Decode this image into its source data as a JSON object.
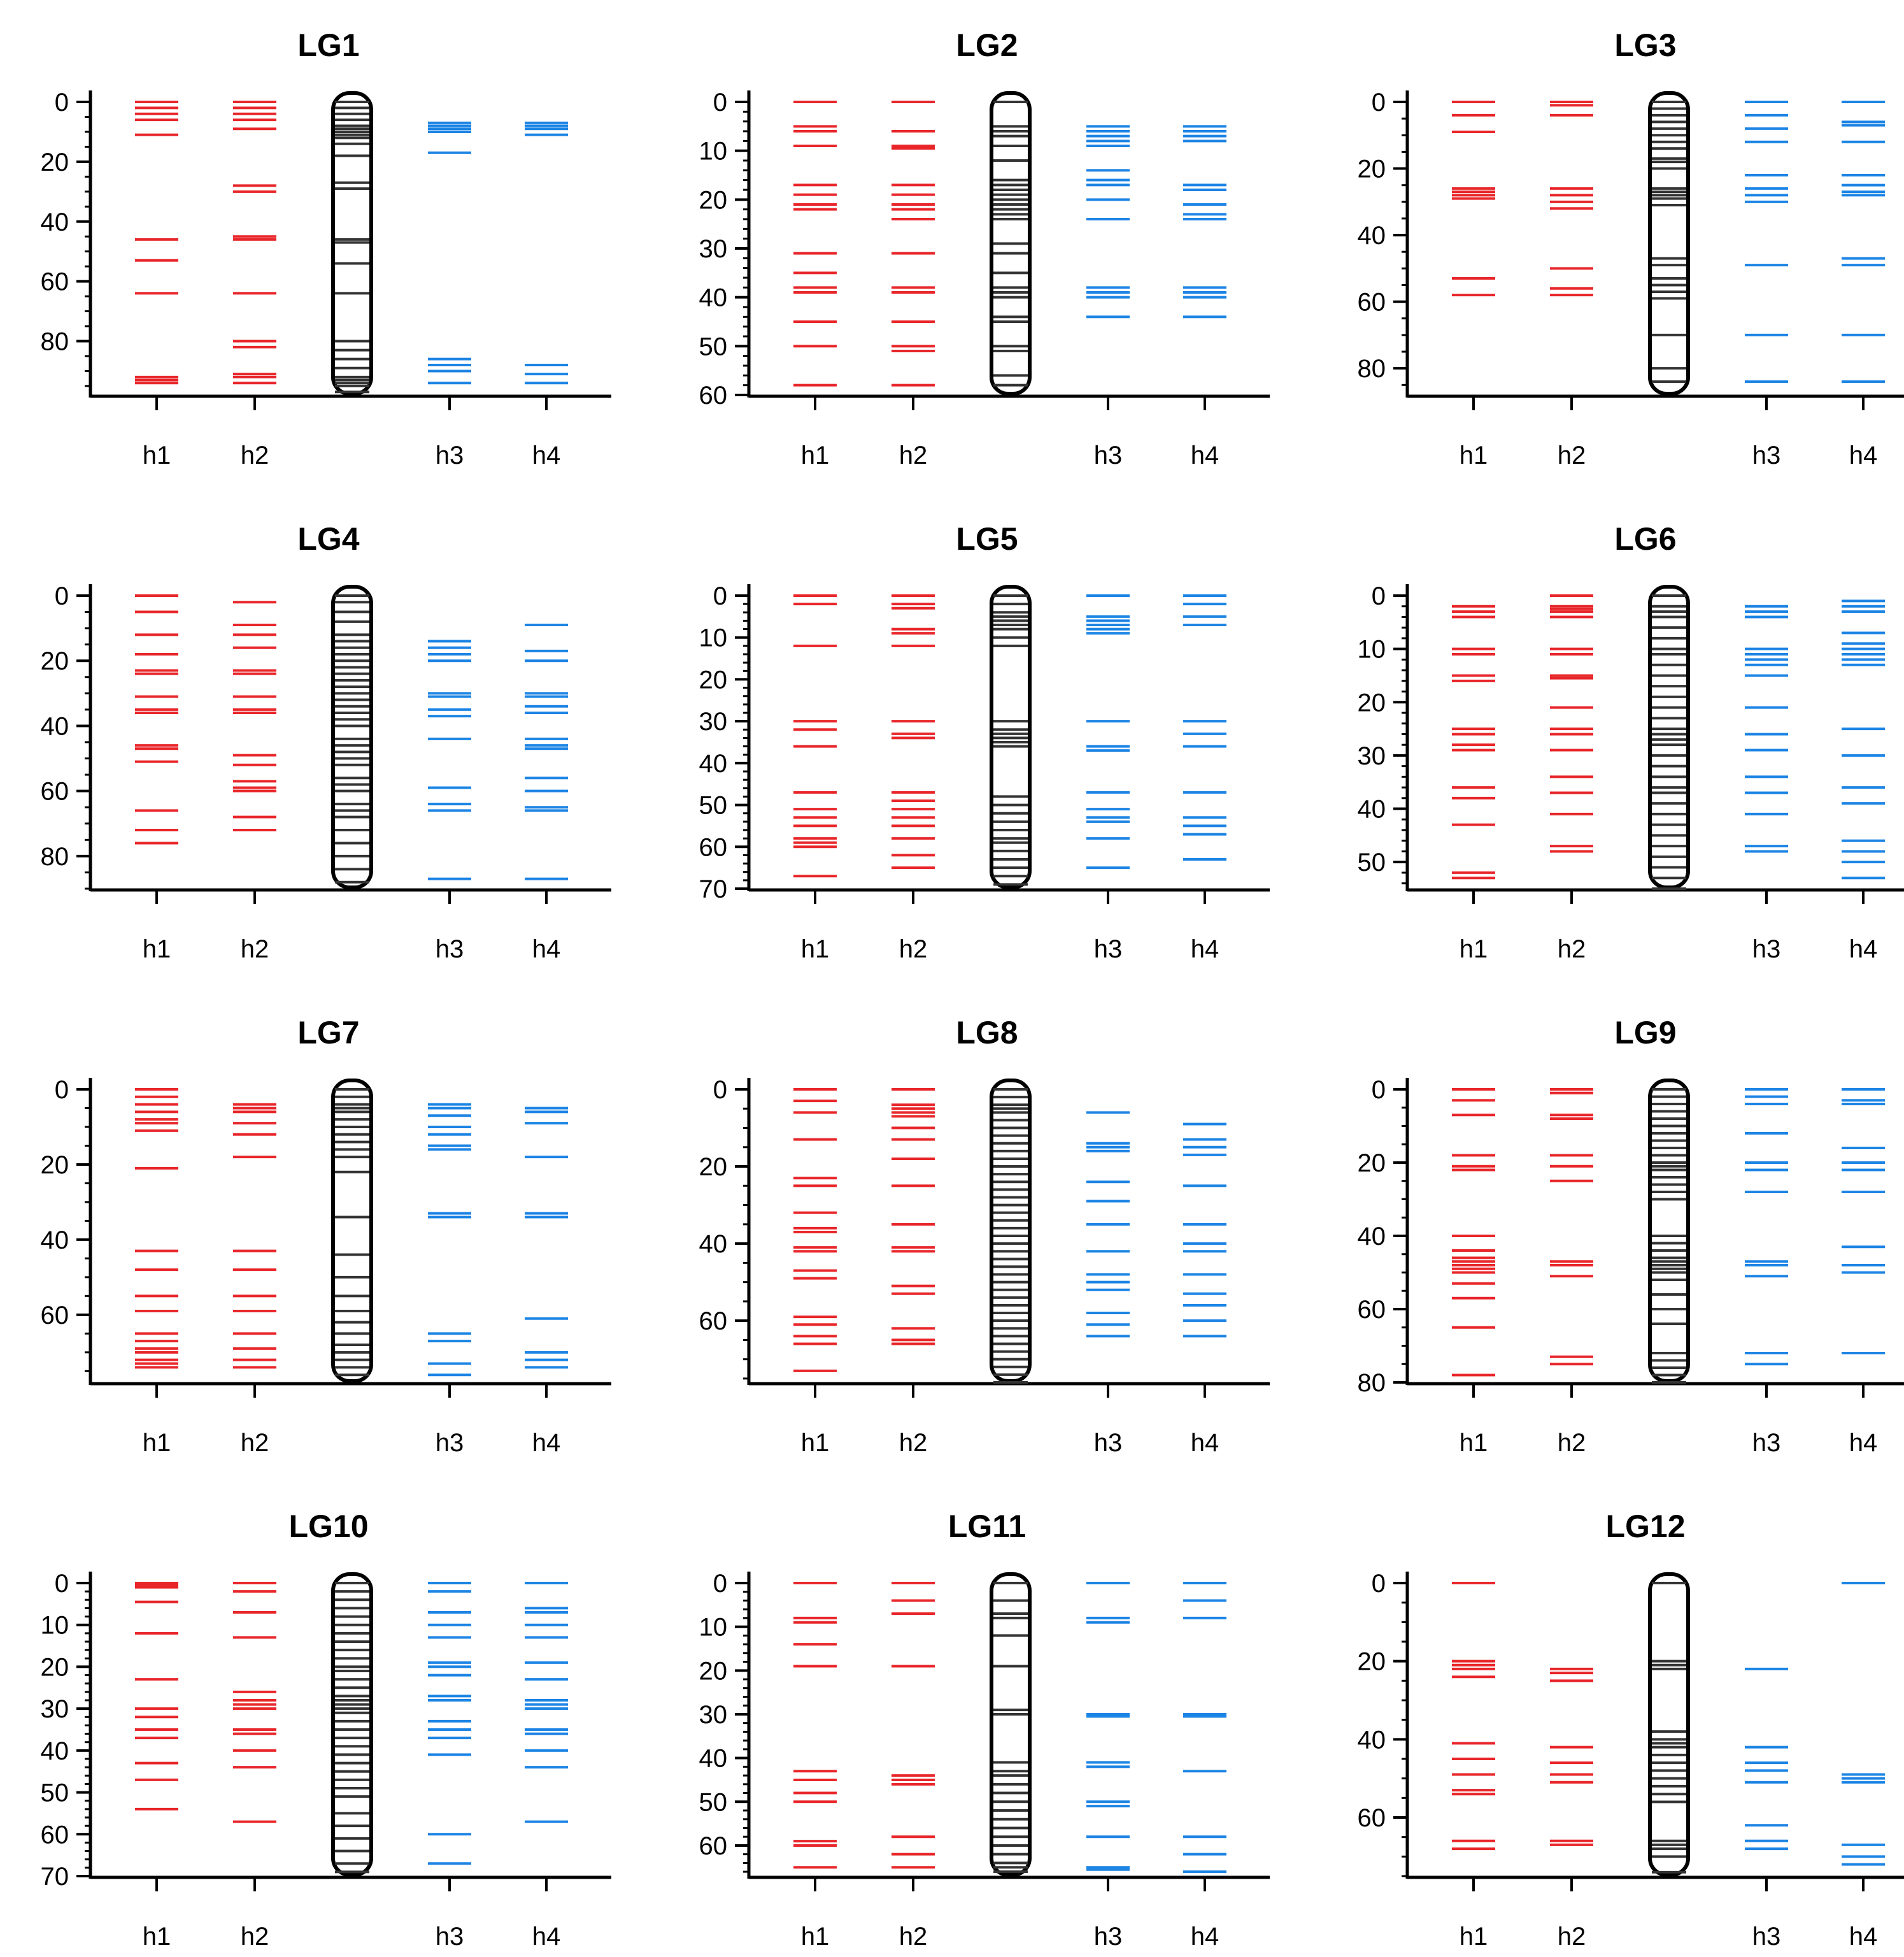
{
  "chart_data": {
    "type": "linkage-map",
    "colors": {
      "h1": "#e8262a",
      "h2": "#e8262a",
      "h3": "#1c84e4",
      "h4": "#1c84e4",
      "chromosome": "#333333",
      "axis": "#000000"
    },
    "haplotype_labels": [
      "h1",
      "h2",
      "h3",
      "h4"
    ],
    "panels": [
      {
        "title": "LG1",
        "ylim": [
          0,
          98
        ],
        "ticks": [
          0,
          20,
          40,
          60,
          80
        ],
        "minor_step": 5,
        "chromosome": [
          0,
          2,
          4,
          6,
          8,
          9,
          10,
          11,
          12,
          14,
          18,
          27,
          29,
          46,
          47,
          54,
          64,
          80,
          83,
          86,
          89,
          92,
          93,
          94,
          95,
          97
        ],
        "h1": [
          0,
          2,
          4,
          6,
          11,
          46,
          53,
          64,
          92,
          93,
          94
        ],
        "h2": [
          0,
          2,
          4,
          6,
          9,
          28,
          30,
          45,
          46,
          64,
          80,
          82,
          91,
          92,
          94
        ],
        "h3": [
          7,
          8,
          9,
          10,
          17,
          86,
          88,
          90,
          94
        ],
        "h4": [
          7,
          8,
          9,
          11,
          88,
          91,
          94
        ]
      },
      {
        "title": "LG2",
        "ylim": [
          0,
          60
        ],
        "ticks": [
          0,
          10,
          20,
          30,
          40,
          50,
          60
        ],
        "minor_step": 2,
        "chromosome": [
          0,
          5,
          6,
          7,
          9,
          12,
          16,
          17,
          18,
          19,
          20,
          21,
          22,
          23,
          24,
          29,
          31,
          35,
          38,
          39,
          40,
          44,
          45,
          50,
          51,
          56,
          58
        ],
        "h1": [
          0,
          5,
          6,
          9,
          17,
          19,
          21,
          22,
          31,
          35,
          38,
          39,
          45,
          50,
          58
        ],
        "h2": [
          0,
          6,
          9,
          9.5,
          17,
          19,
          21,
          22,
          24,
          31,
          38,
          39,
          45,
          50,
          51,
          58
        ],
        "h3": [
          5,
          6,
          7,
          8,
          9,
          14,
          16,
          17,
          20,
          24,
          38,
          39,
          40,
          44
        ],
        "h4": [
          5,
          6,
          7,
          8,
          17,
          18,
          21,
          23,
          24,
          38,
          39,
          40,
          44
        ]
      },
      {
        "title": "LG3",
        "ylim": [
          0,
          88
        ],
        "ticks": [
          0,
          20,
          40,
          60,
          80
        ],
        "minor_step": 5,
        "chromosome": [
          0,
          2,
          4,
          6,
          8,
          10,
          12,
          14,
          17,
          18,
          20,
          26,
          27,
          28,
          29,
          31,
          47,
          49,
          53,
          55,
          57,
          59,
          70,
          80,
          84
        ],
        "h1": [
          0,
          4,
          9,
          26,
          27,
          28,
          29,
          53,
          58
        ],
        "h2": [
          0,
          1,
          4,
          26,
          28,
          30,
          32,
          50,
          56,
          58
        ],
        "h3": [
          0,
          4,
          8,
          12,
          22,
          26,
          28,
          30,
          49,
          70,
          84
        ],
        "h4": [
          0,
          6,
          7,
          12,
          22,
          25,
          27,
          28,
          47,
          49,
          70,
          84
        ]
      },
      {
        "title": "LG4",
        "ylim": [
          0,
          90
        ],
        "ticks": [
          0,
          20,
          40,
          60,
          80
        ],
        "minor_step": 5,
        "chromosome": [
          0,
          2,
          5,
          8,
          12,
          14,
          16,
          18,
          20,
          22,
          24,
          26,
          28,
          30,
          32,
          34,
          36,
          38,
          40,
          44,
          46,
          48,
          50,
          52,
          56,
          58,
          60,
          64,
          66,
          68,
          72,
          76,
          80,
          84,
          88
        ],
        "h1": [
          0,
          5,
          12,
          18,
          23,
          24,
          31,
          35,
          36,
          46,
          47,
          51,
          66,
          72,
          76
        ],
        "h2": [
          2,
          9,
          12,
          16,
          23,
          24,
          31,
          35,
          36,
          49,
          52,
          57,
          59,
          60,
          68,
          72
        ],
        "h3": [
          14,
          16,
          18,
          20,
          30,
          31,
          35,
          37,
          44,
          59,
          64,
          66,
          87
        ],
        "h4": [
          9,
          17,
          20,
          30,
          31,
          34,
          36,
          44,
          46,
          47,
          56,
          60,
          65,
          66,
          87
        ]
      },
      {
        "title": "LG5",
        "ylim": [
          0,
          70
        ],
        "ticks": [
          0,
          10,
          20,
          30,
          40,
          50,
          60,
          70
        ],
        "minor_step": 2,
        "chromosome": [
          0,
          2,
          4,
          5,
          6,
          7,
          8,
          10,
          12,
          30,
          32,
          33,
          34,
          35,
          36,
          48,
          50,
          52,
          54,
          56,
          58,
          59,
          61,
          63,
          65,
          67,
          69
        ],
        "h1": [
          0,
          2,
          12,
          30,
          32,
          36,
          47,
          51,
          53,
          55,
          58,
          59,
          60,
          67
        ],
        "h2": [
          0,
          2,
          3,
          8,
          9,
          12,
          30,
          33,
          34,
          47,
          49,
          51,
          53,
          55,
          58,
          62,
          65
        ],
        "h3": [
          0,
          5,
          6,
          7,
          8,
          9,
          30,
          36,
          37,
          47,
          51,
          53,
          54,
          58,
          65
        ],
        "h4": [
          0,
          2,
          5,
          7,
          30,
          33,
          36,
          47,
          53,
          55,
          57,
          63
        ]
      },
      {
        "title": "LG6",
        "ylim": [
          0,
          55
        ],
        "ticks": [
          0,
          10,
          20,
          30,
          40,
          50
        ],
        "minor_step": 2,
        "chromosome": [
          0,
          2,
          3,
          4,
          6,
          8,
          10,
          11,
          13,
          15,
          17,
          19,
          21,
          23,
          25,
          26,
          27,
          28,
          30,
          32,
          34,
          36,
          37,
          39,
          41,
          43,
          45,
          47,
          49,
          51,
          53,
          55
        ],
        "h1": [
          2,
          3,
          4,
          10,
          11,
          15,
          16,
          25,
          26,
          28,
          29,
          36,
          38,
          43,
          52,
          53
        ],
        "h2": [
          0,
          2,
          2.5,
          3,
          4,
          10,
          11,
          15,
          15.5,
          21,
          25,
          26,
          29,
          34,
          37,
          41,
          47,
          48
        ],
        "h3": [
          2,
          3,
          4,
          10,
          11,
          12,
          13,
          15,
          21,
          26,
          29,
          34,
          37,
          41,
          47,
          48
        ],
        "h4": [
          1,
          2,
          3,
          7,
          9,
          10,
          11,
          12,
          13,
          25,
          30,
          36,
          39,
          46,
          48,
          50,
          53
        ]
      },
      {
        "title": "LG7",
        "ylim": [
          0,
          78
        ],
        "ticks": [
          0,
          20,
          40,
          60
        ],
        "minor_step": 5,
        "chromosome": [
          0,
          2,
          4,
          5,
          6,
          8,
          10,
          12,
          14,
          16,
          18,
          22,
          34,
          44,
          50,
          55,
          59,
          62,
          65,
          68,
          70,
          72,
          74,
          76
        ],
        "h1": [
          0,
          2,
          4,
          6,
          8,
          9,
          11,
          21,
          43,
          48,
          55,
          59,
          65,
          67,
          69,
          70,
          72,
          73,
          74
        ],
        "h2": [
          4,
          5,
          6,
          9,
          12,
          18,
          43,
          48,
          55,
          59,
          65,
          69,
          72,
          74
        ],
        "h3": [
          4,
          5,
          7,
          10,
          12,
          15,
          16,
          33,
          34,
          65,
          67,
          73,
          76
        ],
        "h4": [
          5,
          6,
          9,
          18,
          33,
          34,
          61,
          70,
          72,
          74
        ]
      },
      {
        "title": "LG8",
        "ylim": [
          0,
          76
        ],
        "ticks": [
          0,
          20,
          40,
          60
        ],
        "minor_step": 5,
        "chromosome": [
          0,
          2,
          4,
          5,
          6,
          8,
          10,
          12,
          14,
          16,
          18,
          20,
          22,
          24,
          26,
          28,
          30,
          32,
          34,
          36,
          38,
          40,
          42,
          44,
          46,
          48,
          50,
          52,
          54,
          56,
          58,
          60,
          62,
          64,
          66,
          68,
          70,
          72,
          74,
          76
        ],
        "h1": [
          0,
          3,
          6,
          13,
          23,
          25,
          32,
          36,
          37,
          41,
          42,
          47,
          49,
          59,
          61,
          64,
          66,
          73
        ],
        "h2": [
          0,
          4,
          5,
          6,
          7,
          10,
          13,
          18,
          25,
          35,
          41,
          42,
          51,
          53,
          62,
          65,
          66
        ],
        "h3": [
          6,
          14,
          15,
          16,
          24,
          29,
          35,
          42,
          48,
          50,
          52,
          58,
          61,
          64
        ],
        "h4": [
          9,
          13,
          15,
          17,
          25,
          35,
          40,
          42,
          48,
          53,
          56,
          60,
          64
        ]
      },
      {
        "title": "LG9",
        "ylim": [
          0,
          80
        ],
        "ticks": [
          0,
          20,
          40,
          60,
          80
        ],
        "minor_step": 5,
        "chromosome": [
          0,
          2,
          4,
          6,
          8,
          10,
          12,
          14,
          16,
          18,
          20,
          21,
          22,
          24,
          26,
          28,
          30,
          40,
          42,
          44,
          46,
          47,
          48,
          49,
          50,
          52,
          56,
          60,
          64,
          72,
          74,
          76,
          78,
          80
        ],
        "h1": [
          0,
          3,
          7,
          18,
          21,
          22,
          40,
          44,
          46,
          47,
          48,
          49,
          50,
          53,
          57,
          65,
          78
        ],
        "h2": [
          0,
          1,
          7,
          8,
          18,
          21,
          25,
          47,
          48,
          51,
          73,
          75
        ],
        "h3": [
          0,
          2,
          4,
          12,
          20,
          22,
          28,
          47,
          48,
          51,
          72,
          75
        ],
        "h4": [
          0,
          3,
          4,
          16,
          20,
          22,
          28,
          43,
          48,
          50,
          72
        ]
      },
      {
        "title": "LG10",
        "ylim": [
          0,
          70
        ],
        "ticks": [
          0,
          10,
          20,
          30,
          40,
          50,
          60,
          70
        ],
        "minor_step": 2,
        "chromosome": [
          0,
          2,
          4,
          6,
          8,
          10,
          12,
          14,
          16,
          18,
          20,
          21,
          23,
          25,
          27,
          28,
          29,
          30,
          31,
          33,
          35,
          37,
          39,
          41,
          43,
          45,
          47,
          49,
          51,
          55,
          58,
          61,
          64,
          67,
          69
        ],
        "h1": [
          0,
          0.5,
          1,
          4.5,
          12,
          23,
          30,
          32,
          35,
          37,
          43,
          47,
          54
        ],
        "h2": [
          0,
          2,
          7,
          13,
          26,
          28,
          29,
          30,
          35,
          36,
          40,
          44,
          57
        ],
        "h3": [
          0,
          2,
          7,
          10,
          13,
          19,
          20,
          22,
          27,
          28,
          33,
          35,
          37,
          41,
          60,
          67
        ],
        "h4": [
          0,
          6,
          7,
          10,
          13,
          19,
          23,
          28,
          29,
          30,
          35,
          36,
          40,
          44,
          57
        ]
      },
      {
        "title": "LG11",
        "ylim": [
          0,
          67
        ],
        "ticks": [
          0,
          10,
          20,
          30,
          40,
          50,
          60
        ],
        "minor_step": 2,
        "chromosome": [
          0,
          4,
          7,
          8,
          12,
          19,
          29,
          30,
          41,
          43,
          44,
          46,
          48,
          50,
          52,
          54,
          56,
          58,
          60,
          62,
          64,
          65,
          66
        ],
        "h1": [
          0,
          8,
          9,
          14,
          19,
          43,
          45,
          48,
          50,
          59,
          60,
          65
        ],
        "h2": [
          0,
          4,
          7,
          19,
          44,
          45,
          46,
          58,
          62,
          65
        ],
        "h3": [
          0,
          8,
          9,
          30,
          30.5,
          41,
          42,
          50,
          51,
          58,
          65,
          65.5
        ],
        "h4": [
          0,
          4,
          8,
          30,
          30.5,
          43,
          58,
          62,
          66
        ]
      },
      {
        "title": "LG12",
        "ylim": [
          0,
          75
        ],
        "ticks": [
          0,
          20,
          40,
          60
        ],
        "minor_step": 5,
        "chromosome": [
          0,
          20,
          21,
          22,
          38,
          40,
          41,
          42,
          44,
          46,
          48,
          50,
          52,
          54,
          56,
          66,
          67,
          68,
          70,
          74
        ],
        "h1": [
          0,
          20,
          21,
          22,
          24,
          41,
          45,
          49,
          53,
          54,
          66,
          68
        ],
        "h2": [
          22,
          23,
          25,
          42,
          46,
          49,
          51,
          66,
          67
        ],
        "h3": [
          22,
          42,
          46,
          48,
          51,
          62,
          66,
          68
        ],
        "h4": [
          0,
          49,
          50,
          51,
          67,
          70,
          72
        ]
      }
    ]
  }
}
